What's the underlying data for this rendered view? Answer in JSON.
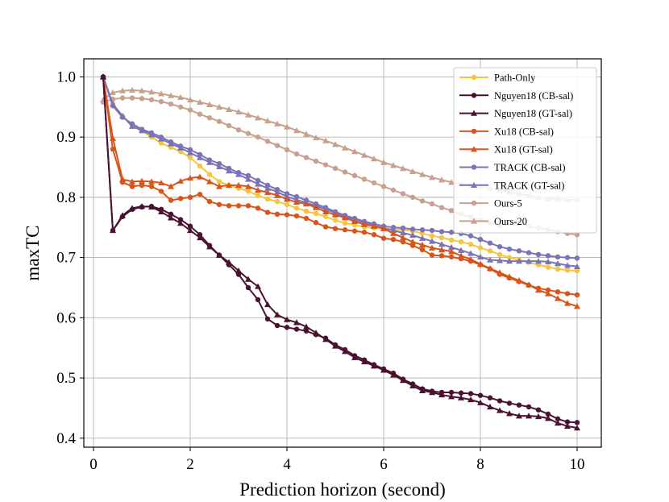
{
  "chart_data": {
    "type": "line",
    "title": "",
    "xlabel": "Prediction horizon (second)",
    "ylabel": "maxTC",
    "xlim": [
      -0.2,
      10.5
    ],
    "ylim": [
      0.385,
      1.03
    ],
    "xticks": [
      0,
      2,
      4,
      6,
      8,
      10
    ],
    "xtick_labels": [
      "0",
      "2",
      "4",
      "6",
      "8",
      "10"
    ],
    "yticks": [
      0.4,
      0.5,
      0.6,
      0.7,
      0.8,
      0.9,
      1.0
    ],
    "ytick_labels": [
      "0.4",
      "0.5",
      "0.6",
      "0.7",
      "0.8",
      "0.9",
      "1.0"
    ],
    "grid": true,
    "legend_position": "top-right",
    "x_start": 0.2,
    "x_step": 0.2,
    "series": [
      {
        "name": "Path-Only",
        "color": "#f5c542",
        "marker": "circle",
        "values": [
          1.0,
          0.955,
          0.935,
          0.92,
          0.91,
          0.9,
          0.89,
          0.883,
          0.876,
          0.866,
          0.852,
          0.838,
          0.826,
          0.82,
          0.815,
          0.81,
          0.803,
          0.797,
          0.793,
          0.788,
          0.782,
          0.777,
          0.773,
          0.768,
          0.762,
          0.757,
          0.754,
          0.751,
          0.749,
          0.748,
          0.747,
          0.746,
          0.744,
          0.74,
          0.736,
          0.733,
          0.729,
          0.726,
          0.722,
          0.716,
          0.711,
          0.705,
          0.7,
          0.696,
          0.692,
          0.688,
          0.684,
          0.681,
          0.679,
          0.678
        ]
      },
      {
        "name": "Nguyen18 (CB-sal)",
        "color": "#4a1230",
        "marker": "circle",
        "values": [
          1.0,
          0.745,
          0.768,
          0.78,
          0.784,
          0.785,
          0.78,
          0.772,
          0.763,
          0.752,
          0.738,
          0.72,
          0.704,
          0.688,
          0.672,
          0.65,
          0.63,
          0.598,
          0.587,
          0.584,
          0.581,
          0.578,
          0.572,
          0.566,
          0.555,
          0.547,
          0.537,
          0.53,
          0.522,
          0.515,
          0.508,
          0.498,
          0.49,
          0.482,
          0.478,
          0.476,
          0.476,
          0.475,
          0.474,
          0.471,
          0.467,
          0.462,
          0.458,
          0.455,
          0.452,
          0.447,
          0.44,
          0.432,
          0.427,
          0.426
        ]
      },
      {
        "name": "Nguyen18 (GT-sal)",
        "color": "#4a1230",
        "marker": "triangle",
        "values": [
          1.0,
          0.745,
          0.77,
          0.782,
          0.785,
          0.784,
          0.776,
          0.766,
          0.757,
          0.745,
          0.733,
          0.718,
          0.704,
          0.692,
          0.678,
          0.664,
          0.652,
          0.622,
          0.605,
          0.597,
          0.592,
          0.585,
          0.575,
          0.564,
          0.553,
          0.544,
          0.534,
          0.527,
          0.52,
          0.513,
          0.505,
          0.496,
          0.487,
          0.479,
          0.476,
          0.472,
          0.469,
          0.467,
          0.464,
          0.459,
          0.452,
          0.446,
          0.441,
          0.437,
          0.437,
          0.436,
          0.433,
          0.425,
          0.42,
          0.417
        ]
      },
      {
        "name": "Xu18 (CB-sal)",
        "color": "#d9541a",
        "marker": "circle",
        "values": [
          1.0,
          0.88,
          0.825,
          0.818,
          0.82,
          0.818,
          0.81,
          0.795,
          0.798,
          0.8,
          0.805,
          0.793,
          0.788,
          0.786,
          0.786,
          0.786,
          0.782,
          0.775,
          0.772,
          0.771,
          0.769,
          0.765,
          0.758,
          0.751,
          0.748,
          0.746,
          0.744,
          0.742,
          0.738,
          0.732,
          0.73,
          0.726,
          0.72,
          0.713,
          0.704,
          0.703,
          0.701,
          0.698,
          0.694,
          0.688,
          0.681,
          0.672,
          0.666,
          0.66,
          0.654,
          0.649,
          0.646,
          0.643,
          0.64,
          0.638
        ]
      },
      {
        "name": "Xu18 (GT-sal)",
        "color": "#d9541a",
        "marker": "triangle",
        "values": [
          1.0,
          0.898,
          0.83,
          0.826,
          0.827,
          0.826,
          0.824,
          0.818,
          0.827,
          0.832,
          0.834,
          0.826,
          0.818,
          0.82,
          0.82,
          0.818,
          0.812,
          0.808,
          0.803,
          0.797,
          0.792,
          0.789,
          0.783,
          0.776,
          0.771,
          0.766,
          0.76,
          0.755,
          0.752,
          0.748,
          0.74,
          0.733,
          0.726,
          0.721,
          0.716,
          0.713,
          0.71,
          0.703,
          0.697,
          0.689,
          0.682,
          0.675,
          0.668,
          0.662,
          0.655,
          0.646,
          0.64,
          0.632,
          0.624,
          0.619
        ]
      },
      {
        "name": "TRACK (CB-sal)",
        "color": "#7b73b8",
        "marker": "circle",
        "values": [
          1.0,
          0.952,
          0.933,
          0.922,
          0.913,
          0.907,
          0.9,
          0.892,
          0.885,
          0.879,
          0.871,
          0.862,
          0.856,
          0.848,
          0.841,
          0.836,
          0.828,
          0.82,
          0.813,
          0.806,
          0.801,
          0.795,
          0.789,
          0.783,
          0.776,
          0.77,
          0.765,
          0.76,
          0.756,
          0.752,
          0.75,
          0.749,
          0.747,
          0.746,
          0.745,
          0.743,
          0.742,
          0.74,
          0.736,
          0.73,
          0.724,
          0.718,
          0.714,
          0.711,
          0.708,
          0.705,
          0.703,
          0.701,
          0.7,
          0.699
        ]
      },
      {
        "name": "TRACK (GT-sal)",
        "color": "#7b73b8",
        "marker": "triangle",
        "values": [
          1.0,
          0.955,
          0.935,
          0.918,
          0.911,
          0.904,
          0.897,
          0.889,
          0.882,
          0.874,
          0.866,
          0.858,
          0.851,
          0.844,
          0.838,
          0.83,
          0.822,
          0.815,
          0.809,
          0.801,
          0.796,
          0.791,
          0.786,
          0.78,
          0.774,
          0.768,
          0.763,
          0.758,
          0.753,
          0.749,
          0.745,
          0.741,
          0.737,
          0.732,
          0.727,
          0.722,
          0.717,
          0.712,
          0.707,
          0.701,
          0.696,
          0.695,
          0.694,
          0.694,
          0.694,
          0.694,
          0.693,
          0.69,
          0.687,
          0.685
        ]
      },
      {
        "name": "Ours-5",
        "color": "#c9a08c",
        "marker": "circle",
        "values": [
          0.958,
          0.963,
          0.965,
          0.965,
          0.964,
          0.962,
          0.959,
          0.955,
          0.95,
          0.945,
          0.938,
          0.932,
          0.926,
          0.919,
          0.912,
          0.906,
          0.9,
          0.893,
          0.886,
          0.879,
          0.872,
          0.866,
          0.86,
          0.854,
          0.848,
          0.842,
          0.836,
          0.83,
          0.824,
          0.818,
          0.812,
          0.806,
          0.8,
          0.794,
          0.789,
          0.783,
          0.778,
          0.772,
          0.767,
          0.762,
          0.757,
          0.752,
          0.757,
          0.756,
          0.752,
          0.749,
          0.746,
          0.743,
          0.74,
          0.738
        ]
      },
      {
        "name": "Ours-20",
        "color": "#c9a08c",
        "marker": "triangle",
        "values": [
          0.962,
          0.974,
          0.977,
          0.978,
          0.977,
          0.975,
          0.972,
          0.969,
          0.966,
          0.962,
          0.958,
          0.954,
          0.95,
          0.946,
          0.942,
          0.937,
          0.932,
          0.927,
          0.922,
          0.917,
          0.911,
          0.905,
          0.899,
          0.894,
          0.888,
          0.882,
          0.876,
          0.87,
          0.864,
          0.858,
          0.853,
          0.848,
          0.843,
          0.838,
          0.833,
          0.829,
          0.825,
          0.822,
          0.82,
          0.818,
          0.815,
          0.812,
          0.809,
          0.806,
          0.803,
          0.8,
          0.798,
          0.797,
          0.796,
          0.796
        ]
      }
    ]
  }
}
